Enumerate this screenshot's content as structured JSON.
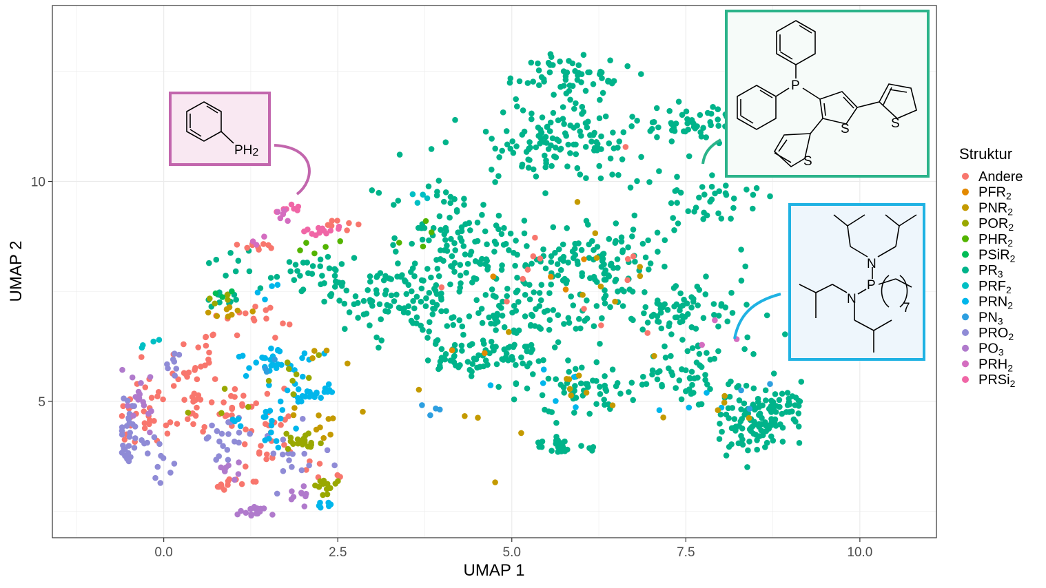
{
  "chart_data": {
    "type": "scatter",
    "title": "",
    "xlabel": "UMAP 1",
    "ylabel": "UMAP 2",
    "xlim": [
      -1.6,
      11.1
    ],
    "ylim": [
      1.9,
      14.0
    ],
    "xticks": [
      0,
      2.5,
      5,
      7.5,
      10
    ],
    "xtick_labels": [
      "0.0",
      "2.5",
      "5.0",
      "7.5",
      "10.0"
    ],
    "yticks": [
      5,
      10
    ],
    "ytick_labels": [
      "5",
      "10"
    ],
    "grid": true,
    "legend": {
      "title": "Struktur",
      "placement": "right",
      "entries": [
        {
          "key": "Andere",
          "base": "Andere",
          "sub": "",
          "color": "#F8766D"
        },
        {
          "key": "PFR2",
          "base": "PFR",
          "sub": "2",
          "color": "#E38900"
        },
        {
          "key": "PNR2",
          "base": "PNR",
          "sub": "2",
          "color": "#C49A00"
        },
        {
          "key": "POR2",
          "base": "POR",
          "sub": "2",
          "color": "#99A800"
        },
        {
          "key": "PHR2",
          "base": "PHR",
          "sub": "2",
          "color": "#53B400"
        },
        {
          "key": "PSiR2",
          "base": "PSiR",
          "sub": "2",
          "color": "#00BC56"
        },
        {
          "key": "PR3",
          "base": "PR",
          "sub": "3",
          "color": "#00B38A"
        },
        {
          "key": "PRF2",
          "base": "PRF",
          "sub": "2",
          "color": "#00BFC4"
        },
        {
          "key": "PRN2",
          "base": "PRN",
          "sub": "2",
          "color": "#00B6EB"
        },
        {
          "key": "PN3",
          "base": "PN",
          "sub": "3",
          "color": "#2D9FE0"
        },
        {
          "key": "PRO2",
          "base": "PRO",
          "sub": "2",
          "color": "#8F8BD6"
        },
        {
          "key": "PO3",
          "base": "PO",
          "sub": "3",
          "color": "#B07ACC"
        },
        {
          "key": "PRH2",
          "base": "PRH",
          "sub": "2",
          "color": "#D46DC0"
        },
        {
          "key": "PRSi2",
          "base": "PRSi",
          "sub": "2",
          "color": "#F066A6"
        }
      ]
    },
    "clusters": [
      {
        "series": "PR3",
        "count": 60,
        "cx": 5.9,
        "cy": 12.4,
        "sx": 0.55,
        "sy": 0.35
      },
      {
        "series": "PR3",
        "count": 130,
        "cx": 5.7,
        "cy": 10.9,
        "sx": 0.9,
        "sy": 0.55
      },
      {
        "series": "PR3",
        "count": 50,
        "cx": 7.6,
        "cy": 11.3,
        "sx": 0.45,
        "sy": 0.3
      },
      {
        "series": "PR3",
        "count": 40,
        "cx": 7.8,
        "cy": 9.6,
        "sx": 0.55,
        "sy": 0.45
      },
      {
        "series": "PR3",
        "count": 110,
        "cx": 4.2,
        "cy": 8.5,
        "sx": 0.7,
        "sy": 0.8
      },
      {
        "series": "PR3",
        "count": 80,
        "cx": 3.5,
        "cy": 7.2,
        "sx": 0.6,
        "sy": 0.5
      },
      {
        "series": "PR3",
        "count": 140,
        "cx": 6.1,
        "cy": 8.1,
        "sx": 0.9,
        "sy": 0.65
      },
      {
        "series": "PR3",
        "count": 90,
        "cx": 5.1,
        "cy": 6.8,
        "sx": 0.8,
        "sy": 0.5
      },
      {
        "series": "PR3",
        "count": 60,
        "cx": 4.5,
        "cy": 6.0,
        "sx": 0.6,
        "sy": 0.25
      },
      {
        "series": "PR3",
        "count": 70,
        "cx": 7.5,
        "cy": 6.9,
        "sx": 0.7,
        "sy": 0.5
      },
      {
        "series": "PR3",
        "count": 70,
        "cx": 6.0,
        "cy": 5.3,
        "sx": 0.9,
        "sy": 0.35
      },
      {
        "series": "PR3",
        "count": 40,
        "cx": 7.6,
        "cy": 5.6,
        "sx": 0.45,
        "sy": 0.45
      },
      {
        "series": "PR3",
        "count": 110,
        "cx": 8.5,
        "cy": 4.6,
        "sx": 0.35,
        "sy": 0.55
      },
      {
        "series": "PR3",
        "count": 28,
        "cx": 5.7,
        "cy": 4.0,
        "sx": 0.22,
        "sy": 0.12
      },
      {
        "series": "PR3",
        "count": 25,
        "cx": 1.7,
        "cy": 8.1,
        "sx": 0.55,
        "sy": 0.3
      },
      {
        "series": "PR3",
        "count": 14,
        "cx": 2.3,
        "cy": 7.6,
        "sx": 0.3,
        "sy": 0.35
      },
      {
        "series": "PR3",
        "count": 18,
        "cx": 2.8,
        "cy": 7.6,
        "sx": 0.35,
        "sy": 0.3
      },
      {
        "series": "PR3",
        "count": 10,
        "cx": 0.95,
        "cy": 7.3,
        "sx": 0.25,
        "sy": 0.15
      },
      {
        "series": "PR3",
        "count": 10,
        "cx": 4.0,
        "cy": 9.7,
        "sx": 0.2,
        "sy": 0.25
      },
      {
        "series": "PR3",
        "count": 15,
        "cx": 9.05,
        "cy": 4.85,
        "sx": 0.15,
        "sy": 0.35
      },
      {
        "series": "Andere",
        "count": 35,
        "cx": -0.25,
        "cy": 5.0,
        "sx": 0.35,
        "sy": 0.75
      },
      {
        "series": "Andere",
        "count": 30,
        "cx": 0.4,
        "cy": 5.2,
        "sx": 0.3,
        "sy": 0.7
      },
      {
        "series": "Andere",
        "count": 20,
        "cx": 1.0,
        "cy": 4.9,
        "sx": 0.3,
        "sy": 0.4
      },
      {
        "series": "Andere",
        "count": 25,
        "cx": 1.5,
        "cy": 4.2,
        "sx": 0.3,
        "sy": 0.8
      },
      {
        "series": "Andere",
        "count": 10,
        "cx": 0.9,
        "cy": 3.1,
        "sx": 0.12,
        "sy": 0.12
      },
      {
        "series": "Andere",
        "count": 14,
        "cx": 1.25,
        "cy": 6.9,
        "sx": 0.25,
        "sy": 0.3
      },
      {
        "series": "Andere",
        "count": 9,
        "cx": 1.35,
        "cy": 8.5,
        "sx": 0.15,
        "sy": 0.1
      },
      {
        "series": "Andere",
        "count": 7,
        "cx": 2.6,
        "cy": 9.0,
        "sx": 0.15,
        "sy": 0.15
      },
      {
        "series": "Andere",
        "count": 8,
        "cx": 0.55,
        "cy": 6.3,
        "sx": 0.15,
        "sy": 0.3
      },
      {
        "series": "Andere",
        "count": 14,
        "cx": 5.8,
        "cy": 8.2,
        "sx": 1.4,
        "sy": 1.5
      },
      {
        "series": "Andere",
        "count": 6,
        "cx": 2.2,
        "cy": 3.6,
        "sx": 0.35,
        "sy": 0.5
      },
      {
        "series": "PRO2",
        "count": 30,
        "cx": -0.5,
        "cy": 4.3,
        "sx": 0.1,
        "sy": 0.55
      },
      {
        "series": "PRO2",
        "count": 12,
        "cx": -0.1,
        "cy": 3.7,
        "sx": 0.25,
        "sy": 0.35
      },
      {
        "series": "PRO2",
        "count": 20,
        "cx": 0.9,
        "cy": 4.1,
        "sx": 0.3,
        "sy": 0.3
      },
      {
        "series": "PRO2",
        "count": 15,
        "cx": 1.8,
        "cy": 3.6,
        "sx": 0.3,
        "sy": 0.35
      },
      {
        "series": "PRO2",
        "count": 8,
        "cx": 0.15,
        "cy": 5.9,
        "sx": 0.1,
        "sy": 0.15
      },
      {
        "series": "PO3",
        "count": 16,
        "cx": 1.3,
        "cy": 2.5,
        "sx": 0.12,
        "sy": 0.08
      },
      {
        "series": "PO3",
        "count": 16,
        "cx": -0.4,
        "cy": 5.0,
        "sx": 0.15,
        "sy": 0.6
      },
      {
        "series": "PO3",
        "count": 10,
        "cx": 1.9,
        "cy": 2.85,
        "sx": 0.15,
        "sy": 0.15
      },
      {
        "series": "PO3",
        "count": 8,
        "cx": 0.95,
        "cy": 3.5,
        "sx": 0.15,
        "sy": 0.15
      },
      {
        "series": "PRN2",
        "count": 30,
        "cx": 1.65,
        "cy": 5.9,
        "sx": 0.35,
        "sy": 0.25
      },
      {
        "series": "PRN2",
        "count": 25,
        "cx": 2.2,
        "cy": 5.2,
        "sx": 0.2,
        "sy": 0.15
      },
      {
        "series": "PRN2",
        "count": 20,
        "cx": 1.5,
        "cy": 4.6,
        "sx": 0.35,
        "sy": 0.5
      },
      {
        "series": "PRN2",
        "count": 6,
        "cx": 2.35,
        "cy": 2.6,
        "sx": 0.15,
        "sy": 0.1
      },
      {
        "series": "PRN2",
        "count": 6,
        "cx": 5.5,
        "cy": 5.3,
        "sx": 0.8,
        "sy": 0.5
      },
      {
        "series": "PRN2",
        "count": 4,
        "cx": 1.5,
        "cy": 7.5,
        "sx": 0.2,
        "sy": 0.15
      },
      {
        "series": "PRN2",
        "count": 4,
        "cx": 7.6,
        "cy": 5.0,
        "sx": 0.35,
        "sy": 0.35
      },
      {
        "series": "POR2",
        "count": 20,
        "cx": 1.95,
        "cy": 4.1,
        "sx": 0.2,
        "sy": 0.15
      },
      {
        "series": "POR2",
        "count": 12,
        "cx": 2.35,
        "cy": 3.1,
        "sx": 0.12,
        "sy": 0.15
      },
      {
        "series": "POR2",
        "count": 8,
        "cx": 2.0,
        "cy": 5.6,
        "sx": 0.3,
        "sy": 0.35
      },
      {
        "series": "POR2",
        "count": 5,
        "cx": 0.85,
        "cy": 7.3,
        "sx": 0.15,
        "sy": 0.1
      },
      {
        "series": "POR2",
        "count": 4,
        "cx": 0.8,
        "cy": 5.0,
        "sx": 0.3,
        "sy": 0.6
      },
      {
        "series": "PNR2",
        "count": 10,
        "cx": 2.3,
        "cy": 4.5,
        "sx": 0.3,
        "sy": 0.4
      },
      {
        "series": "PNR2",
        "count": 8,
        "cx": 1.0,
        "cy": 7.0,
        "sx": 0.2,
        "sy": 0.1
      },
      {
        "series": "PNR2",
        "count": 14,
        "cx": 5.6,
        "cy": 5.2,
        "sx": 1.0,
        "sy": 0.8
      },
      {
        "series": "PNR2",
        "count": 8,
        "cx": 6.5,
        "cy": 8.3,
        "sx": 0.6,
        "sy": 1.1
      },
      {
        "series": "PNR2",
        "count": 5,
        "cx": 8.1,
        "cy": 4.9,
        "sx": 0.5,
        "sy": 0.3
      },
      {
        "series": "PNR2",
        "count": 4,
        "cx": 2.4,
        "cy": 6.0,
        "sx": 0.3,
        "sy": 0.3
      },
      {
        "series": "PRSi2",
        "count": 12,
        "cx": 2.25,
        "cy": 8.9,
        "sx": 0.18,
        "sy": 0.08
      },
      {
        "series": "PRSi2",
        "count": 8,
        "cx": 1.8,
        "cy": 9.35,
        "sx": 0.12,
        "sy": 0.08
      },
      {
        "series": "PRH2",
        "count": 5,
        "cx": 1.7,
        "cy": 9.2,
        "sx": 0.1,
        "sy": 0.1
      },
      {
        "series": "PRH2",
        "count": 3,
        "cx": 1.3,
        "cy": 8.7,
        "sx": 0.1,
        "sy": 0.1
      },
      {
        "series": "PRH2",
        "count": 3,
        "cx": 7.9,
        "cy": 6.4,
        "sx": 0.2,
        "sy": 0.3
      },
      {
        "series": "PN3",
        "count": 4,
        "cx": 4.0,
        "cy": 4.75,
        "sx": 0.3,
        "sy": 0.1
      },
      {
        "series": "PN3",
        "count": 3,
        "cx": 8.5,
        "cy": 4.9,
        "sx": 0.2,
        "sy": 0.2
      },
      {
        "series": "PN3",
        "count": 3,
        "cx": 1.4,
        "cy": 5.8,
        "sx": 0.3,
        "sy": 0.2
      },
      {
        "series": "PRF2",
        "count": 4,
        "cx": 3.8,
        "cy": 9.6,
        "sx": 0.2,
        "sy": 0.2
      },
      {
        "series": "PRF2",
        "count": 4,
        "cx": -0.2,
        "cy": 6.3,
        "sx": 0.15,
        "sy": 0.2
      },
      {
        "series": "PHR2",
        "count": 5,
        "cx": 2.1,
        "cy": 8.5,
        "sx": 0.25,
        "sy": 0.15
      },
      {
        "series": "PHR2",
        "count": 4,
        "cx": 3.6,
        "cy": 8.8,
        "sx": 0.2,
        "sy": 0.3
      },
      {
        "series": "PSiR2",
        "count": 3,
        "cx": 0.9,
        "cy": 7.4,
        "sx": 0.15,
        "sy": 0.1
      },
      {
        "series": "PFR2",
        "count": 6,
        "cx": 4.9,
        "cy": 7.3,
        "sx": 1.0,
        "sy": 1.0
      }
    ],
    "annotations": [
      {
        "id": "phenylphosphine",
        "label": "PH2",
        "label_base": "PH",
        "label_sub": "2",
        "color": "#C266AD",
        "fill": "#F9E8F2",
        "target_series": "PRH2"
      },
      {
        "id": "triphenylphosphine-thiophene",
        "labels": [
          "P",
          "S",
          "S",
          "S"
        ],
        "color": "#2BB38A",
        "fill": "#F6FBF9",
        "target_series": "PR3"
      },
      {
        "id": "aminophosphine",
        "labels": [
          "N",
          "N",
          "P",
          "N",
          "7"
        ],
        "color": "#1FB2E3",
        "fill": "#EEF6FC",
        "target_series": "PRN2"
      }
    ]
  }
}
